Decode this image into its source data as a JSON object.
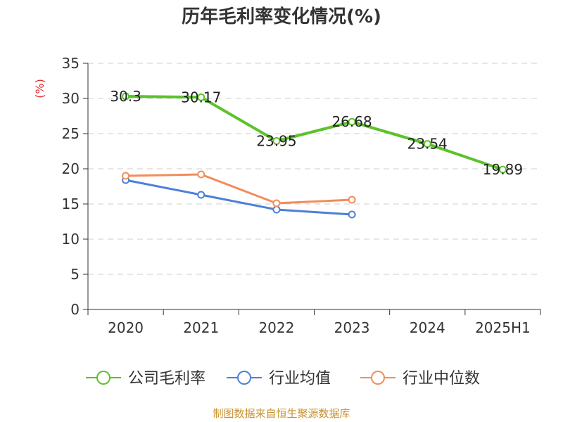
{
  "chart_data": {
    "type": "line",
    "title": "历年毛利率变化情况(%)",
    "ylabel": "(%)",
    "xlabel": "",
    "categories": [
      "2020",
      "2021",
      "2022",
      "2023",
      "2024",
      "2025H1"
    ],
    "ylim": [
      0,
      35
    ],
    "yticks": [
      0,
      5,
      10,
      15,
      20,
      25,
      30,
      35
    ],
    "grid": true,
    "legend_position": "bottom",
    "series": [
      {
        "name": "公司毛利率",
        "color": "#5cc22a",
        "values": [
          30.3,
          30.17,
          23.95,
          26.68,
          23.54,
          19.89
        ],
        "labels": [
          "30.3",
          "30.17",
          "23.95",
          "26.68",
          "23.54",
          "19.89"
        ]
      },
      {
        "name": "行业均值",
        "color": "#4d7fd9",
        "values": [
          18.4,
          16.3,
          14.2,
          13.5,
          null,
          null
        ]
      },
      {
        "name": "行业中位数",
        "color": "#f28c5a",
        "values": [
          19.0,
          19.2,
          15.1,
          15.6,
          null,
          null
        ]
      }
    ]
  },
  "source": {
    "text": "制图数据来自恒生聚源数据库",
    "color": "#c8922d"
  },
  "unit_color": "#e03030"
}
